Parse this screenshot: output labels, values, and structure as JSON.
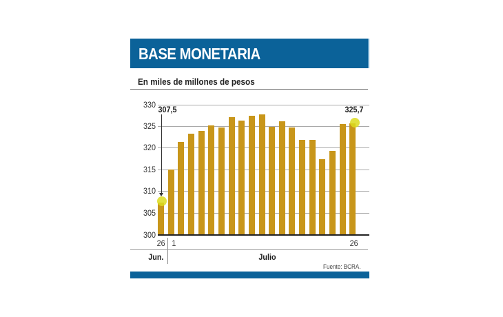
{
  "header": {
    "title": "BASE MONETARIA",
    "subtitle": "En miles de millones de pesos"
  },
  "colors": {
    "header_band": "#0b6299",
    "bar": "#c8961a",
    "marker": "#dcdc1e",
    "grid": "#a8a8a8"
  },
  "annotations": {
    "first_value": "307,5",
    "last_value": "325,7"
  },
  "x_labels": {
    "start_day": "26",
    "july_first": "1",
    "end_day": "26",
    "month_june": "Jun.",
    "month_july": "Julio"
  },
  "source": "Fuente: BCRA.",
  "y_ticks": [
    "330",
    "325",
    "320",
    "315",
    "310",
    "305",
    "300"
  ],
  "chart_data": {
    "type": "bar",
    "title": "BASE MONETARIA",
    "subtitle": "En miles de millones de pesos",
    "xlabel": "",
    "ylabel": "",
    "ylim": [
      300,
      330
    ],
    "yticks": [
      300,
      305,
      310,
      315,
      320,
      325,
      330
    ],
    "grid": true,
    "categories": [
      "26 Jun",
      "1 Jul",
      "2 Jul",
      "3 Jul",
      "4 Jul",
      "5 Jul",
      "6 Jul",
      "7 Jul",
      "8 Jul",
      "9 Jul",
      "10 Jul",
      "11 Jul",
      "12 Jul",
      "13 Jul",
      "14 Jul",
      "15 Jul",
      "16 Jul",
      "17 Jul",
      "18 Jul",
      "26 Jul"
    ],
    "values": [
      307.5,
      315.1,
      321.4,
      323.3,
      323.9,
      325.3,
      324.8,
      327.1,
      326.3,
      327.4,
      327.8,
      324.9,
      326.2,
      324.8,
      321.9,
      321.9,
      317.4,
      319.4,
      325.5,
      325.7
    ],
    "annotations": [
      {
        "label": "307,5",
        "index": 0
      },
      {
        "label": "325,7",
        "index": 19
      }
    ],
    "x_tick_labels": [
      "26",
      "1",
      "26"
    ],
    "x_group_labels": [
      "Jun.",
      "Julio"
    ],
    "source": "Fuente: BCRA."
  }
}
